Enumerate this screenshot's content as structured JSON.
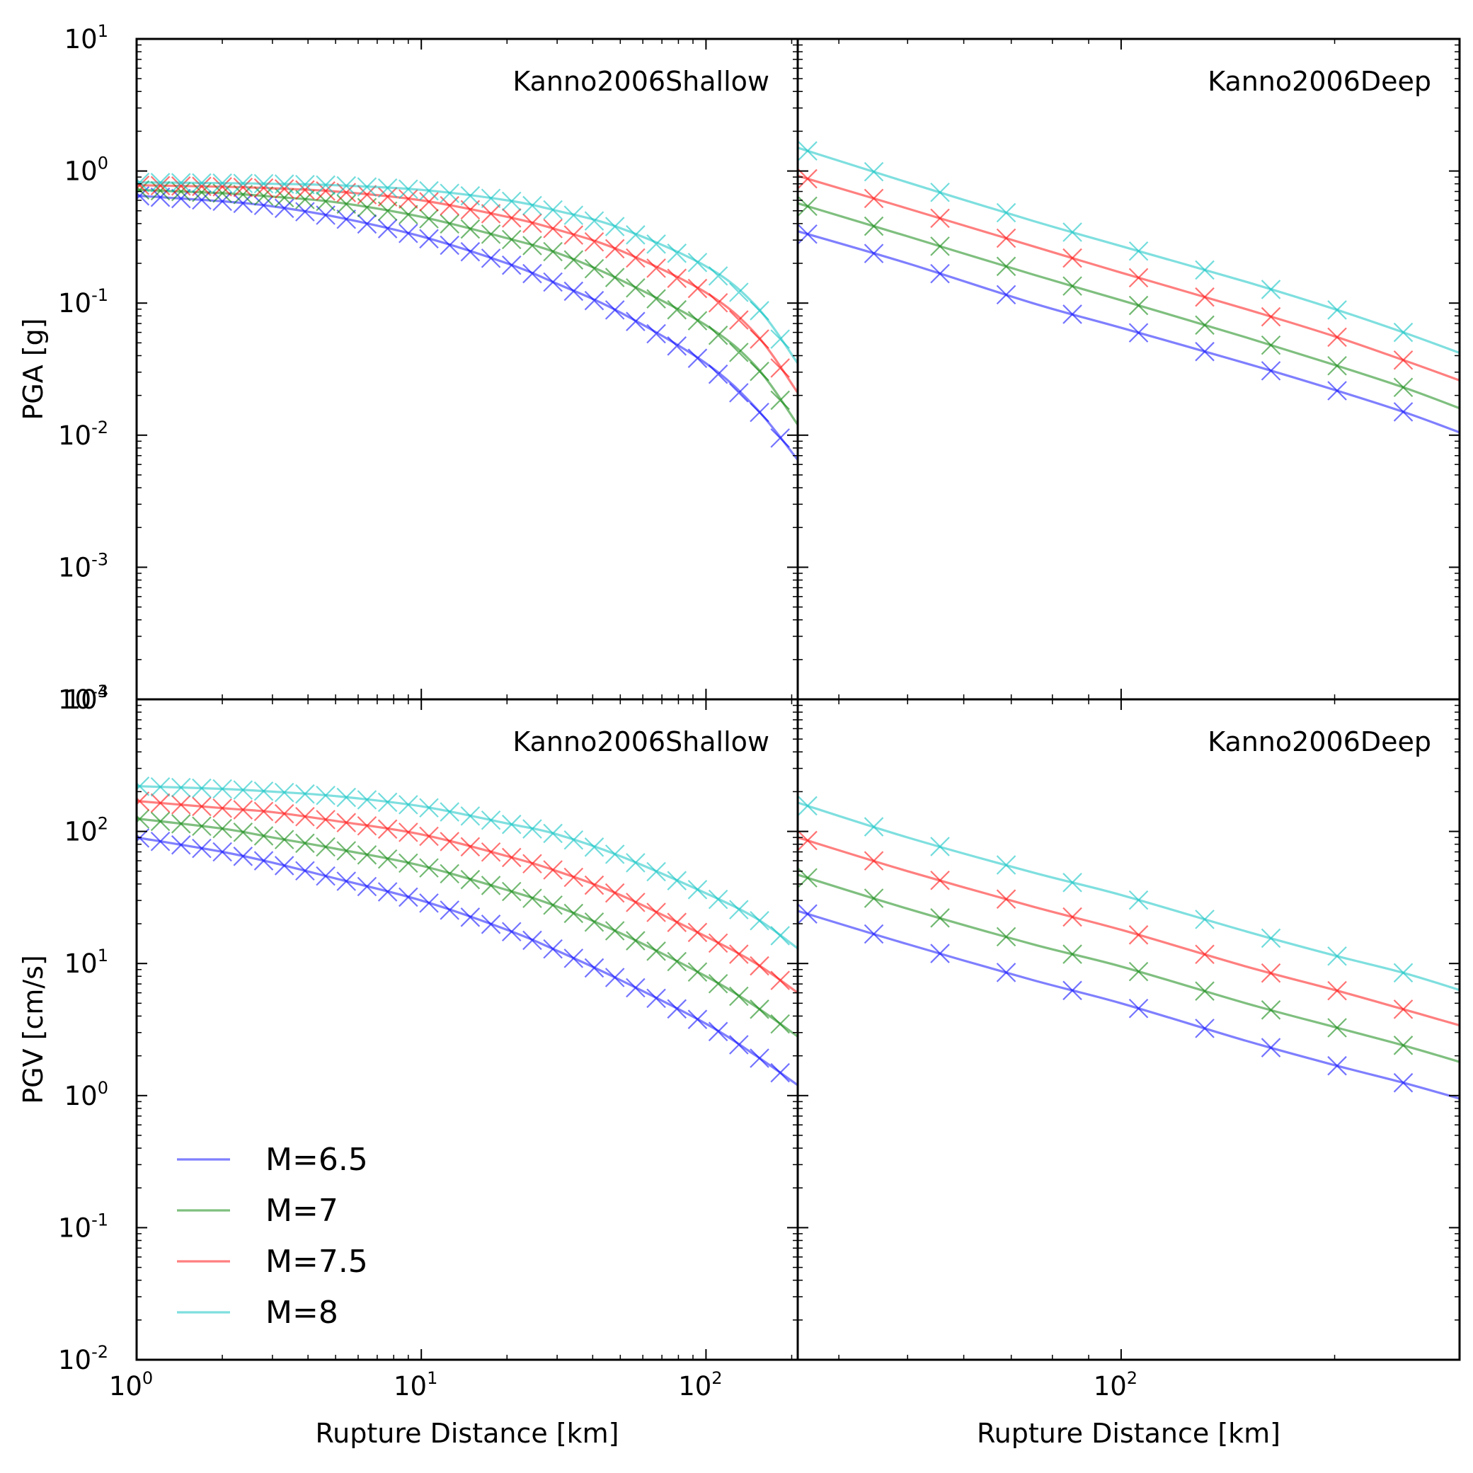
{
  "chart_data": [
    {
      "type": "line",
      "panel": "top-left",
      "title": "Kanno2006Shallow",
      "xlabel": "",
      "ylabel": "PGA [g]",
      "xscale": "log",
      "yscale": "log",
      "xlim": [
        1,
        210
      ],
      "ylim": [
        0.0001,
        10
      ],
      "ytick_labels": [
        "10^-4",
        "10^-3",
        "10^-2",
        "10^-1",
        "10^0",
        "10^1"
      ],
      "grid": false,
      "line_alpha": 0.5,
      "markers": "x",
      "series": [
        {
          "name": "M=6.5",
          "color": "#0000ff",
          "x": [
            1,
            2,
            3,
            5,
            10,
            20,
            30,
            50,
            100,
            150,
            210
          ],
          "values": [
            0.65,
            0.59,
            0.54,
            0.45,
            0.32,
            0.2,
            0.14,
            0.085,
            0.035,
            0.016,
            0.0065
          ]
        },
        {
          "name": "M=7",
          "color": "#008000",
          "x": [
            1,
            2,
            3,
            5,
            10,
            20,
            30,
            50,
            100,
            150,
            210
          ],
          "values": [
            0.72,
            0.68,
            0.64,
            0.58,
            0.45,
            0.31,
            0.24,
            0.15,
            0.068,
            0.033,
            0.012
          ]
        },
        {
          "name": "M=7.5",
          "color": "#ff0000",
          "x": [
            1,
            2,
            3,
            5,
            10,
            20,
            30,
            50,
            100,
            150,
            210
          ],
          "values": [
            0.78,
            0.76,
            0.74,
            0.7,
            0.6,
            0.45,
            0.36,
            0.25,
            0.12,
            0.058,
            0.021
          ]
        },
        {
          "name": "M=8",
          "color": "#00bfbf",
          "x": [
            1,
            2,
            3,
            5,
            10,
            20,
            30,
            50,
            100,
            150,
            210
          ],
          "values": [
            0.82,
            0.81,
            0.8,
            0.78,
            0.72,
            0.6,
            0.5,
            0.37,
            0.19,
            0.095,
            0.035
          ]
        }
      ]
    },
    {
      "type": "line",
      "panel": "top-right",
      "title": "Kanno2006Deep",
      "xlabel": "",
      "ylabel": "",
      "xscale": "log",
      "yscale": "log",
      "xlim": [
        35,
        300
      ],
      "ylim": [
        0.0001,
        10
      ],
      "grid": false,
      "line_alpha": 0.5,
      "markers": "x",
      "series": [
        {
          "name": "M=6.5",
          "color": "#0000ff",
          "x": [
            35,
            50,
            75,
            100,
            150,
            200,
            250,
            300
          ],
          "values": [
            0.35,
            0.2,
            0.1,
            0.065,
            0.035,
            0.022,
            0.015,
            0.0105
          ]
        },
        {
          "name": "M=7",
          "color": "#008000",
          "x": [
            35,
            50,
            75,
            100,
            150,
            200,
            250,
            300
          ],
          "values": [
            0.57,
            0.32,
            0.165,
            0.105,
            0.055,
            0.034,
            0.023,
            0.016
          ]
        },
        {
          "name": "M=7.5",
          "color": "#ff0000",
          "x": [
            35,
            50,
            75,
            100,
            150,
            200,
            250,
            300
          ],
          "values": [
            0.92,
            0.52,
            0.27,
            0.17,
            0.09,
            0.056,
            0.037,
            0.026
          ]
        },
        {
          "name": "M=8",
          "color": "#00bfbf",
          "x": [
            35,
            50,
            75,
            100,
            150,
            200,
            250,
            300
          ],
          "values": [
            1.5,
            0.82,
            0.42,
            0.27,
            0.145,
            0.09,
            0.06,
            0.042
          ]
        }
      ]
    },
    {
      "type": "line",
      "panel": "bottom-left",
      "title": "Kanno2006Shallow",
      "xlabel": "Rupture Distance [km]",
      "ylabel": "PGV [cm/s]",
      "xscale": "log",
      "yscale": "log",
      "xlim": [
        1,
        210
      ],
      "ylim": [
        0.01,
        1000
      ],
      "xtick_labels": [
        "10^0",
        "10^1",
        "10^2"
      ],
      "ytick_labels": [
        "10^-2",
        "10^-1",
        "10^0",
        "10^1",
        "10^2",
        "10^3"
      ],
      "grid": false,
      "line_alpha": 0.5,
      "markers": "x",
      "legend": {
        "position": "lower-left"
      },
      "series": [
        {
          "name": "M=6.5",
          "color": "#0000ff",
          "x": [
            1,
            2,
            3,
            5,
            10,
            20,
            30,
            50,
            100,
            150,
            210
          ],
          "values": [
            90,
            70,
            58,
            44,
            30,
            18,
            12.5,
            7.5,
            3.5,
            2,
            1.2
          ]
        },
        {
          "name": "M=7",
          "color": "#008000",
          "x": [
            1,
            2,
            3,
            5,
            10,
            20,
            30,
            50,
            100,
            150,
            210
          ],
          "values": [
            125,
            105,
            90,
            74,
            55,
            36,
            27,
            17,
            8,
            4.7,
            2.8
          ]
        },
        {
          "name": "M=7.5",
          "color": "#ff0000",
          "x": [
            1,
            2,
            3,
            5,
            10,
            20,
            30,
            50,
            100,
            150,
            210
          ],
          "values": [
            170,
            150,
            140,
            120,
            95,
            65,
            50,
            33,
            16,
            10,
            6
          ]
        },
        {
          "name": "M=8",
          "color": "#00bfbf",
          "x": [
            1,
            2,
            3,
            5,
            10,
            20,
            30,
            50,
            100,
            150,
            210
          ],
          "values": [
            220,
            210,
            200,
            185,
            155,
            115,
            95,
            65,
            34,
            22,
            13
          ]
        }
      ]
    },
    {
      "type": "line",
      "panel": "bottom-right",
      "title": "Kanno2006Deep",
      "xlabel": "Rupture Distance [km]",
      "ylabel": "",
      "xscale": "log",
      "yscale": "log",
      "xlim": [
        35,
        300
      ],
      "ylim": [
        0.01,
        1000
      ],
      "xtick_labels": [
        "10^2"
      ],
      "grid": false,
      "line_alpha": 0.5,
      "markers": "x",
      "series": [
        {
          "name": "M=6.5",
          "color": "#0000ff",
          "x": [
            35,
            50,
            75,
            100,
            150,
            200,
            250,
            300
          ],
          "values": [
            25,
            14,
            7.5,
            5,
            2.6,
            1.7,
            1.25,
            0.95
          ]
        },
        {
          "name": "M=7",
          "color": "#008000",
          "x": [
            35,
            50,
            75,
            100,
            150,
            200,
            250,
            300
          ],
          "values": [
            47,
            26,
            14,
            9.5,
            5,
            3.3,
            2.4,
            1.8
          ]
        },
        {
          "name": "M=7.5",
          "color": "#ff0000",
          "x": [
            35,
            50,
            75,
            100,
            150,
            200,
            250,
            300
          ],
          "values": [
            90,
            50,
            27,
            18,
            9.5,
            6.3,
            4.5,
            3.4
          ]
        },
        {
          "name": "M=8",
          "color": "#00bfbf",
          "x": [
            35,
            50,
            75,
            100,
            150,
            200,
            250,
            300
          ],
          "values": [
            165,
            90,
            49,
            33,
            17.5,
            11.5,
            8.5,
            6.3
          ]
        }
      ]
    }
  ]
}
